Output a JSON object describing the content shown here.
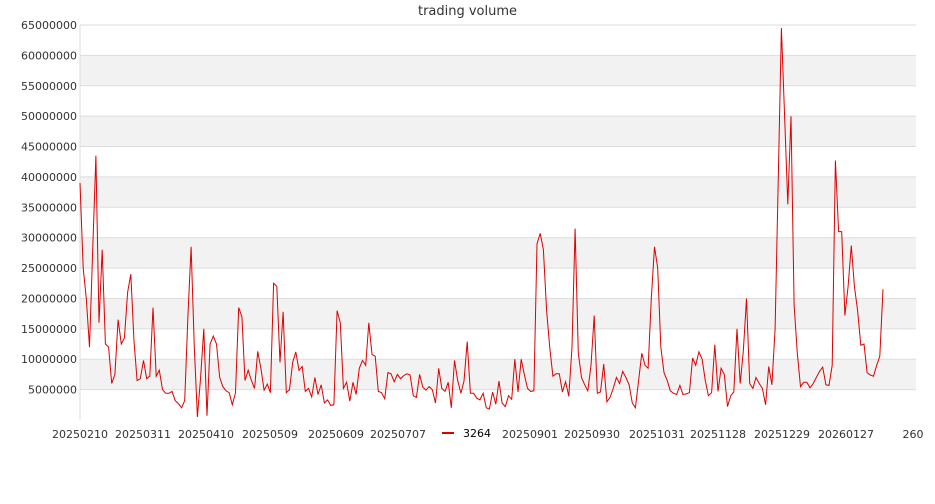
{
  "chart_data": {
    "type": "line",
    "title": "trading volume",
    "xlabel": "",
    "ylabel": "",
    "ylim": [
      0,
      65000000
    ],
    "y_ticks": [
      5000000,
      10000000,
      15000000,
      20000000,
      25000000,
      30000000,
      35000000,
      40000000,
      45000000,
      50000000,
      55000000,
      60000000,
      65000000
    ],
    "x_tick_labels": [
      "20250210",
      "20250311",
      "20250410",
      "20250509",
      "20250609",
      "20250707",
      "20250901",
      "20250930",
      "20251031",
      "20251128",
      "20251229",
      "20260127",
      "260"
    ],
    "grid": true,
    "alternating_bands": true,
    "legend_position": "bottom",
    "colors": {
      "line": "#dd0000",
      "band": "#f2f2f2",
      "grid": "#dddddd",
      "text": "#333333"
    },
    "series": [
      {
        "name": "3264",
        "values": [
          39000000,
          25000000,
          20000000,
          12000000,
          28000000,
          43500000,
          16000000,
          28000000,
          12500000,
          12000000,
          6000000,
          7500000,
          16500000,
          12500000,
          13500000,
          21000000,
          24000000,
          13000000,
          6500000,
          6800000,
          9800000,
          6800000,
          7200000,
          18500000,
          7200000,
          8200000,
          5000000,
          4400000,
          4400000,
          4700000,
          3200000,
          2700000,
          2000000,
          3200000,
          17000000,
          28500000,
          12000000,
          500000,
          7000000,
          15000000,
          700000,
          12500000,
          13800000,
          12500000,
          7000000,
          5500000,
          4800000,
          4500000,
          2500000,
          4500000,
          18500000,
          17000000,
          6500000,
          8200000,
          6500000,
          5200000,
          11300000,
          8500000,
          4900000,
          5900000,
          4500000,
          22500000,
          22000000,
          9500000,
          17800000,
          4500000,
          5000000,
          9500000,
          11200000,
          8200000,
          8800000,
          4700000,
          5200000,
          3800000,
          7000000,
          4200000,
          5800000,
          2800000,
          3300000,
          2400000,
          2500000,
          18000000,
          16000000,
          5200000,
          6200000,
          3100000,
          6200000,
          4200000,
          8500000,
          9800000,
          9000000,
          16000000,
          10800000,
          10500000,
          4700000,
          4500000,
          3500000,
          7800000,
          7600000,
          6300000,
          7500000,
          6800000,
          7300000,
          7600000,
          7400000,
          4000000,
          3700000,
          7500000,
          5400000,
          4900000,
          5500000,
          5000000,
          2800000,
          8500000,
          5200000,
          4700000,
          6200000,
          2000000,
          9800000,
          6500000,
          4400000,
          6400000,
          12900000,
          4400000,
          4400000,
          3600000,
          3300000,
          4400000,
          2000000,
          1800000,
          4600000,
          2600000,
          6400000,
          2800000,
          2200000,
          4000000,
          3400000,
          10000000,
          4600000,
          10000000,
          7500000,
          5200000,
          4700000,
          4800000,
          29000000,
          30700000,
          28000000,
          18000000,
          12000000,
          7200000,
          7600000,
          7600000,
          4600000,
          6300000,
          3900000,
          12000000,
          31500000,
          11000000,
          7000000,
          5800000,
          4800000,
          9000000,
          17200000,
          4400000,
          4600000,
          9200000,
          3000000,
          3700000,
          5200000,
          7000000,
          6000000,
          8000000,
          7000000,
          5800000,
          2800000,
          2000000,
          6500000,
          11000000,
          9000000,
          8500000,
          20000000,
          28500000,
          25000000,
          12000000,
          7800000,
          6500000,
          4800000,
          4400000,
          4200000,
          5700000,
          4200000,
          4300000,
          4500000,
          10200000,
          9000000,
          11200000,
          10000000,
          6500000,
          4000000,
          4500000,
          12400000,
          4700000,
          8500000,
          7500000,
          2200000,
          4000000,
          4600000,
          15000000,
          6000000,
          11300000,
          20000000,
          6000000,
          5200000,
          7000000,
          6000000,
          5200000,
          2500000,
          8800000,
          5800000,
          15000000,
          40000000,
          64500000,
          50000000,
          35500000,
          50000000,
          19000000,
          11000000,
          5500000,
          6200000,
          6200000,
          5300000,
          6000000,
          7000000,
          8000000,
          8700000,
          5800000,
          5700000,
          9000000,
          42700000,
          31000000,
          31000000,
          17200000,
          22000000,
          28700000,
          22000000,
          18000000,
          12300000,
          12500000,
          7800000,
          7400000,
          7200000,
          9000000,
          10500000,
          21500000
        ]
      }
    ]
  }
}
